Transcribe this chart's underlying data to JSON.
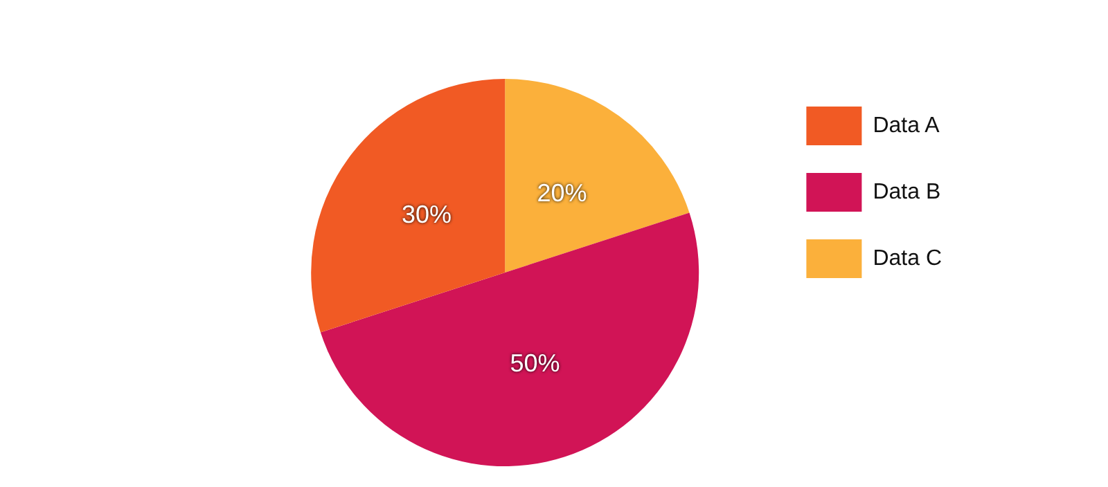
{
  "chart_data": {
    "type": "pie",
    "categories": [
      "Data A",
      "Data B",
      "Data C"
    ],
    "values": [
      30,
      50,
      20
    ],
    "colors": [
      "#f15a24",
      "#d11456",
      "#fbb03b"
    ],
    "legend": "top right",
    "value_labels": [
      "30%",
      "50%",
      "20%"
    ]
  }
}
